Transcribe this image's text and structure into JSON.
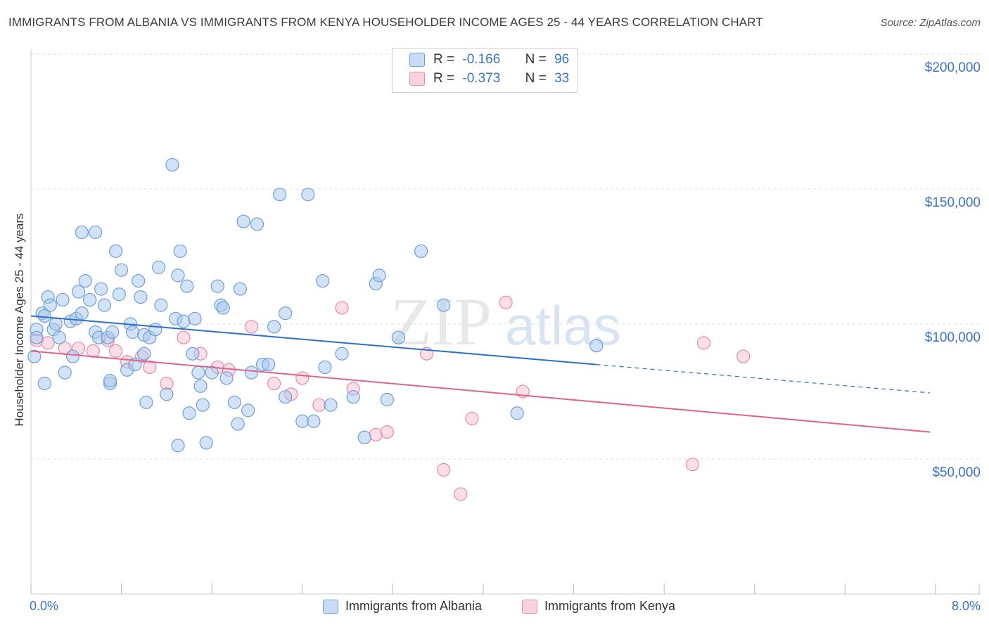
{
  "header": {
    "title": "IMMIGRANTS FROM ALBANIA VS IMMIGRANTS FROM KENYA HOUSEHOLDER INCOME AGES 25 - 44 YEARS CORRELATION CHART",
    "source": "Source: ZipAtlas.com"
  },
  "legend": {
    "rows": [
      {
        "r_label": "R =",
        "r_value": "-0.166",
        "n_label": "N =",
        "n_value": "96"
      },
      {
        "r_label": "R =",
        "r_value": "-0.373",
        "n_label": "N =",
        "n_value": "33"
      }
    ],
    "bottom": [
      "Immigrants from Albania",
      "Immigrants from Kenya"
    ]
  },
  "watermark": {
    "zip": "ZIP",
    "atlas": "atlas"
  },
  "colors": {
    "albania_fill": "#a8c8f0",
    "albania_stroke": "#6f9fd8",
    "albania_line": "#2d6fcc",
    "kenya_fill": "#f5b8cc",
    "kenya_stroke": "#e88aa8",
    "kenya_line": "#e0628f",
    "axis_text": "#3a73c8",
    "grid": "#dddddd"
  },
  "chart_data": {
    "type": "scatter",
    "title": "IMMIGRANTS FROM ALBANIA VS IMMIGRANTS FROM KENYA HOUSEHOLDER INCOME AGES 25 - 44 YEARS CORRELATION CHART",
    "xlabel": "",
    "ylabel": "Householder Income Ages 25 - 44 years",
    "xlim": [
      0,
      8
    ],
    "ylim": [
      0,
      205000
    ],
    "x_tick_labels": [
      "0.0%",
      "8.0%"
    ],
    "y_ticks": [
      50000,
      100000,
      150000,
      200000
    ],
    "y_tick_labels": [
      "$50,000",
      "$100,000",
      "$150,000",
      "$200,000"
    ],
    "series": [
      {
        "name": "Immigrants from Albania",
        "r": -0.166,
        "n": 96,
        "trend": {
          "x0": 0,
          "y0": 103000,
          "x1": 5.0,
          "y1": 85000,
          "x_dash_end": 7.95,
          "y_dash_end": 74500
        },
        "points": [
          [
            0.03,
            88000
          ],
          [
            0.05,
            98000
          ],
          [
            0.05,
            95000
          ],
          [
            0.1,
            104000
          ],
          [
            0.12,
            103000
          ],
          [
            0.15,
            110000
          ],
          [
            0.17,
            107000
          ],
          [
            0.2,
            98000
          ],
          [
            0.22,
            100000
          ],
          [
            0.25,
            95000
          ],
          [
            0.28,
            109000
          ],
          [
            0.3,
            82000
          ],
          [
            0.35,
            101000
          ],
          [
            0.37,
            88000
          ],
          [
            0.4,
            102000
          ],
          [
            0.42,
            112000
          ],
          [
            0.45,
            104000
          ],
          [
            0.48,
            116000
          ],
          [
            0.52,
            109000
          ],
          [
            0.57,
            97000
          ],
          [
            0.6,
            95000
          ],
          [
            0.62,
            113000
          ],
          [
            0.65,
            107000
          ],
          [
            0.68,
            95000
          ],
          [
            0.7,
            78000
          ],
          [
            0.72,
            97000
          ],
          [
            0.75,
            127000
          ],
          [
            0.78,
            111000
          ],
          [
            0.8,
            120000
          ],
          [
            0.85,
            83000
          ],
          [
            0.88,
            100000
          ],
          [
            0.9,
            97000
          ],
          [
            0.92,
            85000
          ],
          [
            0.95,
            116000
          ],
          [
            0.97,
            110000
          ],
          [
            1.0,
            96000
          ],
          [
            1.02,
            71000
          ],
          [
            1.05,
            95000
          ],
          [
            1.1,
            98000
          ],
          [
            1.13,
            121000
          ],
          [
            1.15,
            107000
          ],
          [
            1.2,
            74000
          ],
          [
            1.25,
            159000
          ],
          [
            1.28,
            102000
          ],
          [
            1.3,
            118000
          ],
          [
            1.32,
            127000
          ],
          [
            1.35,
            101000
          ],
          [
            1.38,
            114000
          ],
          [
            1.4,
            67000
          ],
          [
            1.43,
            89000
          ],
          [
            1.45,
            102000
          ],
          [
            1.48,
            82000
          ],
          [
            1.5,
            77000
          ],
          [
            1.52,
            70000
          ],
          [
            1.55,
            56000
          ],
          [
            1.6,
            82000
          ],
          [
            1.65,
            114000
          ],
          [
            1.68,
            107000
          ],
          [
            1.7,
            106000
          ],
          [
            1.73,
            80000
          ],
          [
            1.8,
            71000
          ],
          [
            1.83,
            63000
          ],
          [
            1.85,
            113000
          ],
          [
            1.88,
            138000
          ],
          [
            1.92,
            68000
          ],
          [
            2.0,
            137000
          ],
          [
            2.05,
            85000
          ],
          [
            2.1,
            85000
          ],
          [
            2.15,
            99000
          ],
          [
            2.2,
            148000
          ],
          [
            2.25,
            73000
          ],
          [
            2.25,
            104000
          ],
          [
            2.4,
            64000
          ],
          [
            2.45,
            148000
          ],
          [
            2.5,
            64000
          ],
          [
            2.58,
            116000
          ],
          [
            2.6,
            84000
          ],
          [
            2.65,
            70000
          ],
          [
            2.75,
            89000
          ],
          [
            2.85,
            73000
          ],
          [
            2.95,
            58000
          ],
          [
            3.05,
            115000
          ],
          [
            3.08,
            118000
          ],
          [
            3.15,
            72000
          ],
          [
            3.25,
            95000
          ],
          [
            3.45,
            127000
          ],
          [
            3.65,
            107000
          ],
          [
            4.3,
            67000
          ],
          [
            5.0,
            92000
          ],
          [
            0.57,
            134000
          ],
          [
            0.45,
            134000
          ],
          [
            1.3,
            55000
          ],
          [
            0.12,
            78000
          ],
          [
            0.7,
            79000
          ],
          [
            1.95,
            82000
          ],
          [
            1.0,
            89000
          ]
        ]
      },
      {
        "name": "Immigrants from Kenya",
        "r": -0.373,
        "n": 33,
        "trend": {
          "x0": 0,
          "y0": 90000,
          "x1": 7.95,
          "y1": 60000
        },
        "points": [
          [
            0.05,
            94000
          ],
          [
            0.15,
            93000
          ],
          [
            0.3,
            91000
          ],
          [
            0.42,
            91000
          ],
          [
            0.55,
            90000
          ],
          [
            0.68,
            94000
          ],
          [
            0.75,
            90000
          ],
          [
            0.85,
            86000
          ],
          [
            0.98,
            88000
          ],
          [
            1.05,
            84000
          ],
          [
            1.2,
            78000
          ],
          [
            1.35,
            95000
          ],
          [
            1.5,
            89000
          ],
          [
            1.65,
            84000
          ],
          [
            1.75,
            83000
          ],
          [
            1.95,
            99000
          ],
          [
            2.15,
            78000
          ],
          [
            2.3,
            74000
          ],
          [
            2.4,
            80000
          ],
          [
            2.55,
            70000
          ],
          [
            2.75,
            106000
          ],
          [
            2.85,
            76000
          ],
          [
            3.05,
            59000
          ],
          [
            3.15,
            60000
          ],
          [
            3.5,
            89000
          ],
          [
            3.65,
            46000
          ],
          [
            3.8,
            37000
          ],
          [
            3.9,
            65000
          ],
          [
            4.2,
            108000
          ],
          [
            4.35,
            75000
          ],
          [
            5.85,
            48000
          ],
          [
            5.95,
            93000
          ],
          [
            6.3,
            88000
          ]
        ]
      }
    ]
  }
}
